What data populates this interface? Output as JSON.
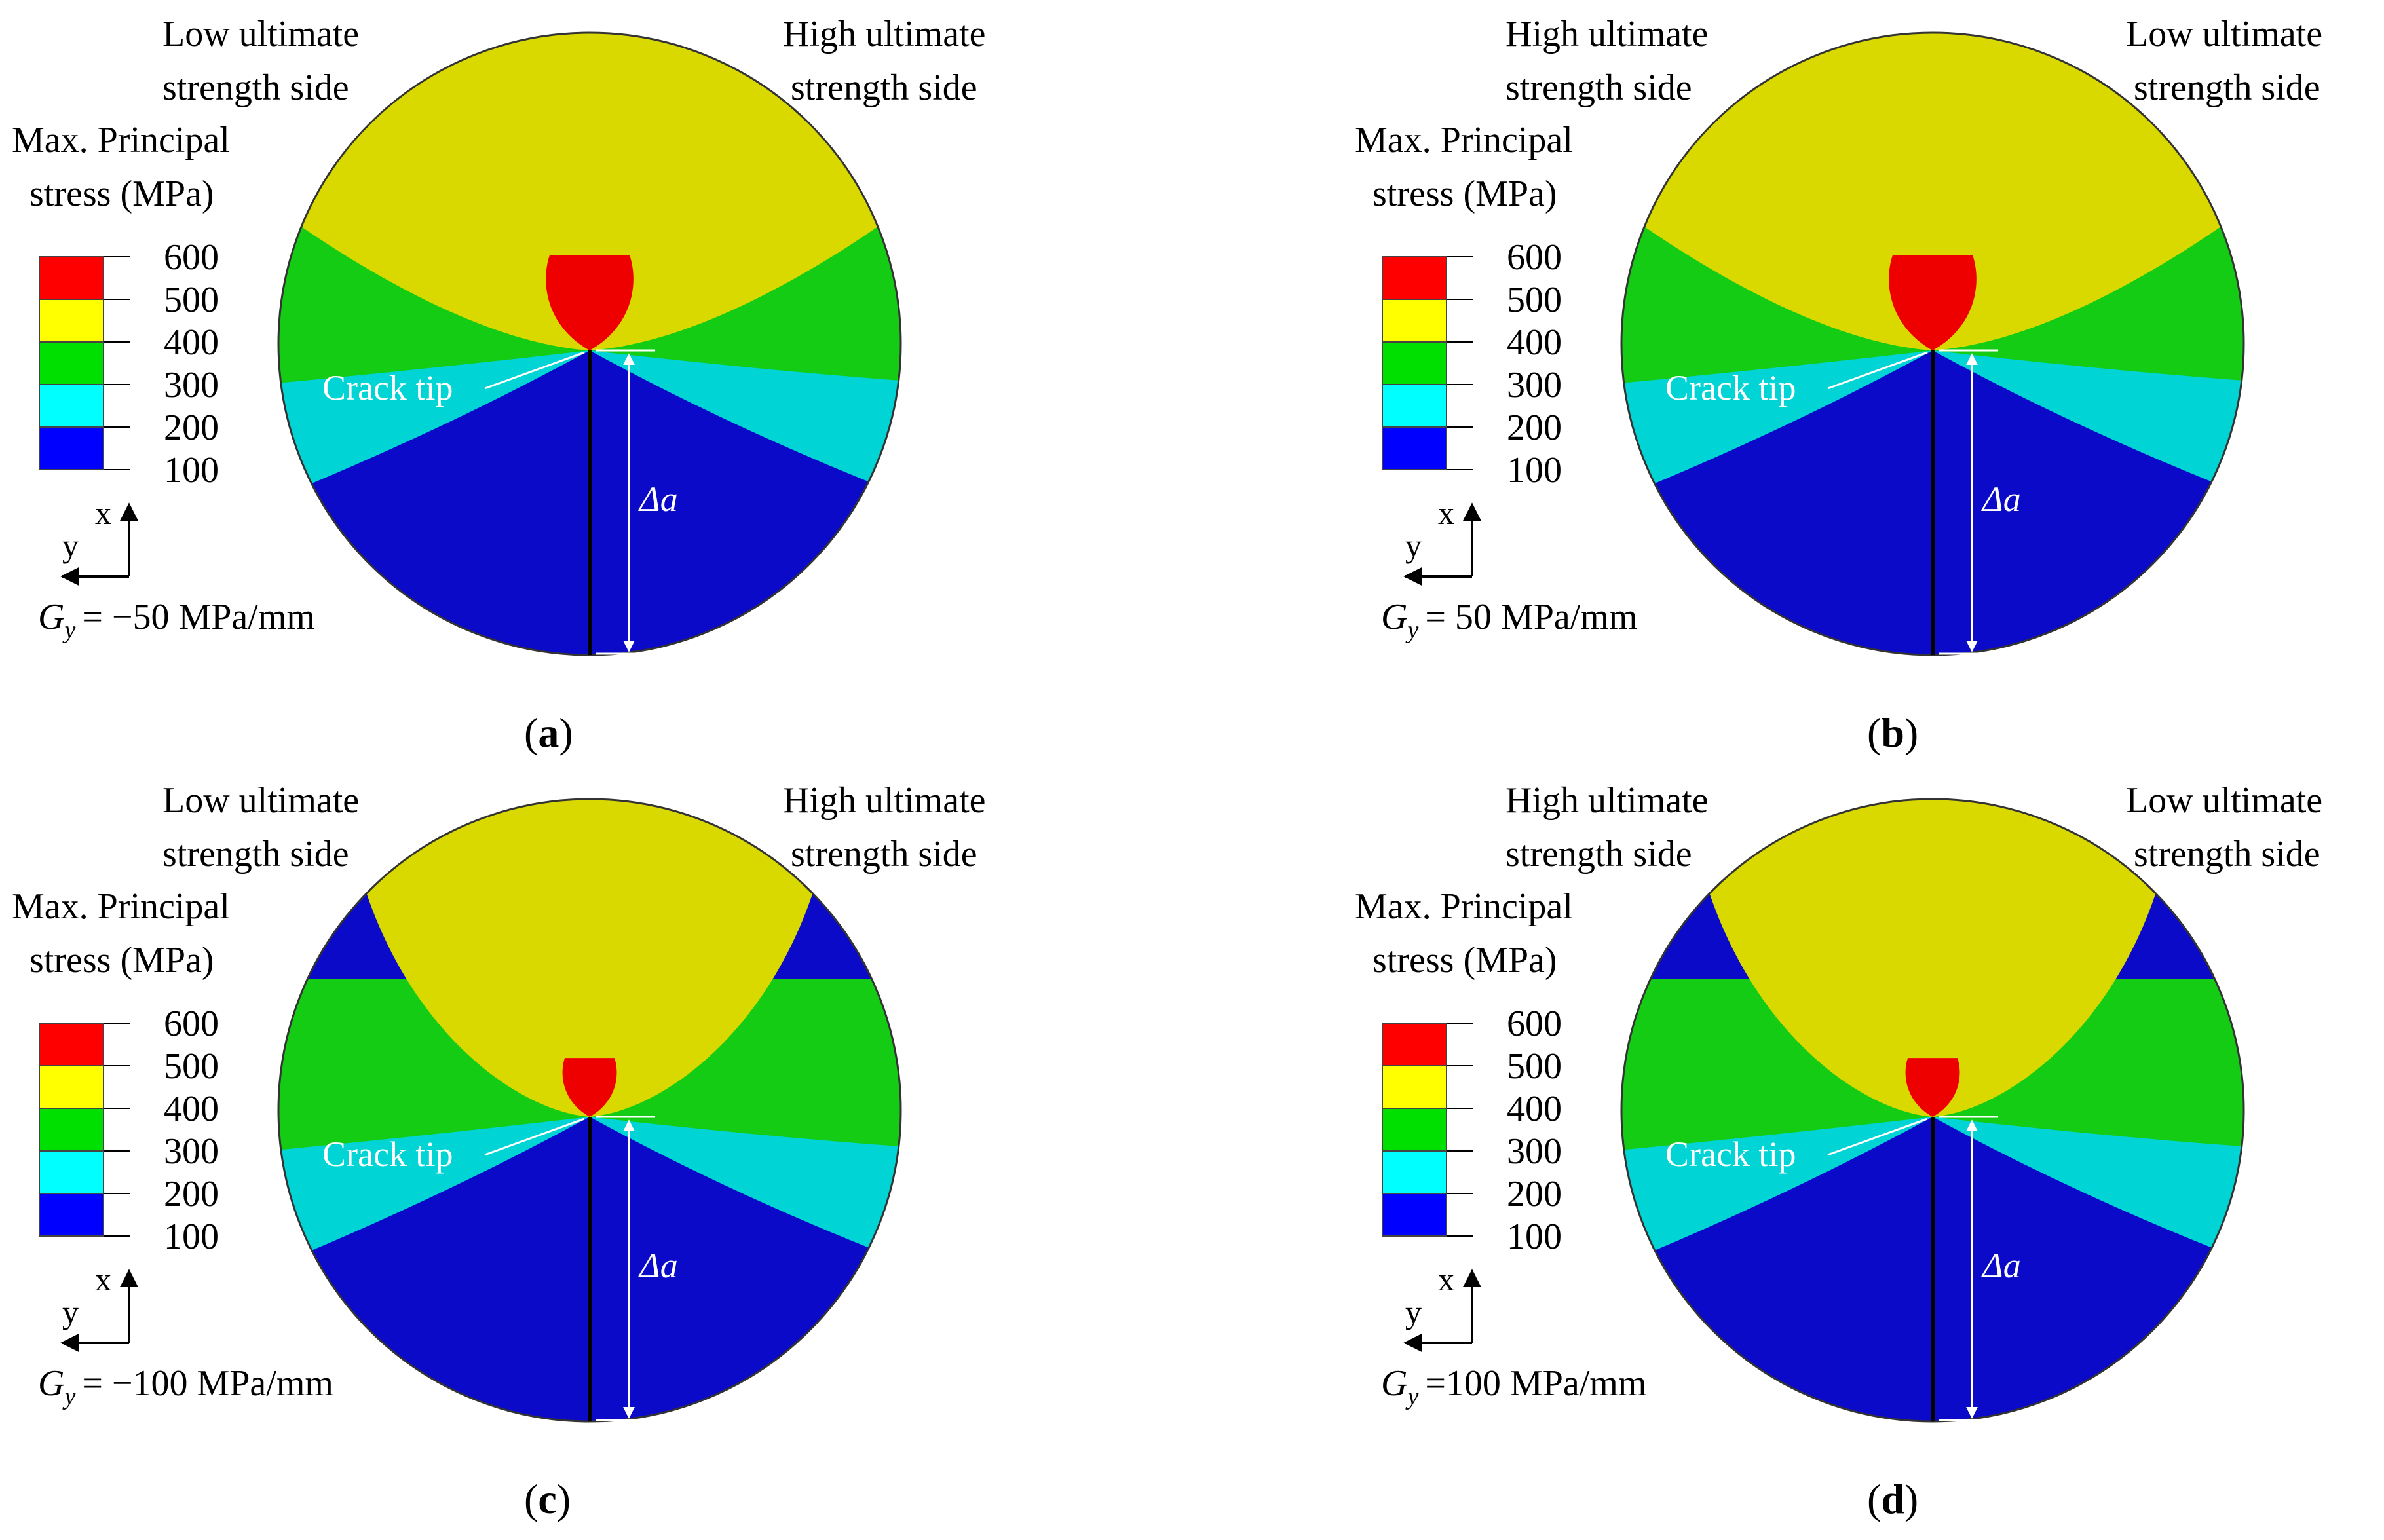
{
  "legend": {
    "title_line1": "Max. Principal",
    "title_line2": "stress (MPa)",
    "ticks": [
      "600",
      "500",
      "400",
      "300",
      "200",
      "100"
    ],
    "band_colors": [
      "#ff0000",
      "#ffff00",
      "#00e000",
      "#00ffff",
      "#0000ff"
    ]
  },
  "field_colors": {
    "red": "#ee0000",
    "yellow": "#d9d900",
    "green": "#14cc14",
    "cyan": "#00d4d4",
    "blue": "#0a0ac8"
  },
  "labels": {
    "crack_tip": "Crack tip",
    "delta_a": "Δa",
    "axis_x": "x",
    "axis_y": "y",
    "gy_symbol": "G",
    "gy_subscript": "y"
  },
  "panels": [
    {
      "caption": "a",
      "left_label": [
        "Low ultimate",
        "strength  side"
      ],
      "right_label": [
        "High ultimate",
        "strength side"
      ],
      "gradient_text": "= −50 MPa/mm",
      "skew": 0.1,
      "red_size": 1.0,
      "yellow_wide": false
    },
    {
      "caption": "b",
      "left_label": [
        "High  ultimate",
        "strength side"
      ],
      "right_label": [
        "Low  ultimate",
        "strength side"
      ],
      "gradient_text": "= 50 MPa/mm",
      "skew": 0.1,
      "red_size": 1.0,
      "yellow_wide": false
    },
    {
      "caption": "c",
      "left_label": [
        "Low ultimate",
        "strength side"
      ],
      "right_label": [
        "High  ultimate",
        "strength side"
      ],
      "gradient_text": "= −100 MPa/mm",
      "skew": 0.15,
      "red_size": 0.62,
      "yellow_wide": true
    },
    {
      "caption": "d",
      "left_label": [
        "High  ultimate",
        "strength side"
      ],
      "right_label": [
        "Low  ultimate",
        "strength side"
      ],
      "gradient_text": "=100 MPa/mm",
      "skew": 0.15,
      "red_size": 0.62,
      "yellow_wide": true
    }
  ]
}
